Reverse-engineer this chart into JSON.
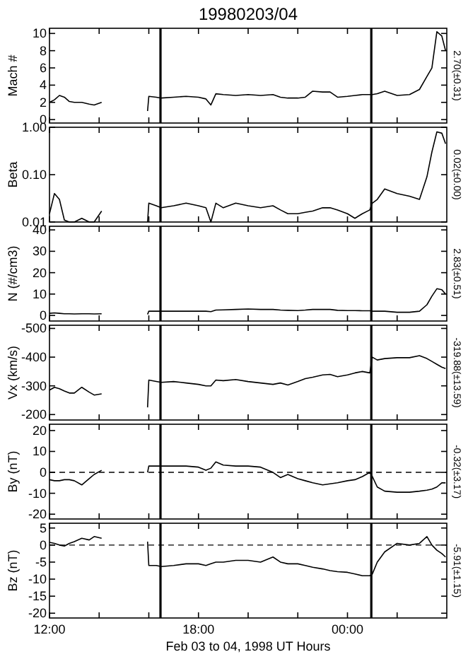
{
  "chart_data": [
    {
      "type": "line",
      "title": "19980203/04",
      "ylabel": "Mach #",
      "annotations": [
        "2.70(±0.31)"
      ],
      "tick_labels": "y",
      "xlim": [
        12,
        28
      ],
      "xticks": [
        {
          "value": 12,
          "label": null
        },
        {
          "value": 14,
          "label": null
        },
        {
          "value": 16,
          "label": null
        },
        {
          "value": 18,
          "label": null
        },
        {
          "value": 20,
          "label": null
        },
        {
          "value": 22,
          "label": null
        },
        {
          "value": 24,
          "label": null
        },
        {
          "value": 26,
          "label": null
        }
      ],
      "ylim": [
        -0.4,
        10.6
      ],
      "yticks": [
        0,
        2,
        4,
        6,
        8,
        10
      ],
      "grid": false,
      "marker": "none",
      "line_style": "solid",
      "x": [
        12.0,
        12.2,
        12.4,
        12.6,
        12.8,
        13.0,
        13.3,
        13.6,
        13.8,
        14.1,
        15.0,
        15.95,
        16.0,
        16.3,
        16.5,
        17.0,
        17.5,
        18.0,
        18.3,
        18.5,
        18.7,
        19.0,
        19.5,
        20.0,
        20.5,
        21.0,
        21.3,
        21.6,
        22.0,
        22.3,
        22.6,
        23.0,
        23.3,
        23.6,
        24.0,
        24.3,
        24.6,
        24.9,
        25.0,
        25.2,
        25.5,
        26.0,
        26.5,
        26.9,
        27.2,
        27.4,
        27.6,
        27.8,
        27.95
      ],
      "ref_lines": [
        {
          "axis": "x",
          "value": 16.47,
          "color": "#000000",
          "line_style": "solid"
        },
        {
          "axis": "x",
          "value": 24.96,
          "color": "#000000",
          "line_style": "solid"
        }
      ],
      "series": [
        {
          "color": "#000000",
          "values": [
            2.0,
            2.3,
            2.8,
            2.6,
            2.1,
            2.0,
            2.0,
            1.8,
            1.7,
            2.0,
            null,
            1.0,
            2.7,
            2.6,
            2.5,
            2.6,
            2.7,
            2.6,
            2.4,
            1.7,
            3.0,
            2.9,
            2.8,
            2.9,
            2.8,
            2.9,
            2.6,
            2.5,
            2.5,
            2.6,
            3.3,
            3.2,
            3.2,
            2.6,
            2.7,
            2.8,
            2.9,
            2.9,
            2.9,
            3.0,
            3.3,
            2.8,
            2.9,
            3.5,
            5.0,
            6.0,
            10.2,
            9.7,
            8.0
          ]
        }
      ]
    },
    {
      "type": "line",
      "ylabel": "Beta",
      "annotations": [
        "0.02(±0.00)"
      ],
      "tick_labels": "y",
      "log": "y",
      "xlim": [
        12,
        28
      ],
      "xticks": [
        {
          "value": 12,
          "label": null
        },
        {
          "value": 14,
          "label": null
        },
        {
          "value": 16,
          "label": null
        },
        {
          "value": 18,
          "label": null
        },
        {
          "value": 20,
          "label": null
        },
        {
          "value": 22,
          "label": null
        },
        {
          "value": 24,
          "label": null
        },
        {
          "value": 26,
          "label": null
        }
      ],
      "ylim": [
        0.01,
        1
      ],
      "yticks": [
        {
          "value": 0.01,
          "label": "0.01"
        },
        {
          "value": 0.1,
          "label": "0.10"
        },
        {
          "value": 1,
          "label": "1.00"
        }
      ],
      "grid": false,
      "marker": "none",
      "line_style": "solid",
      "x": [
        12.0,
        12.2,
        12.4,
        12.6,
        12.8,
        13.0,
        13.3,
        13.6,
        13.8,
        14.1,
        15.0,
        15.95,
        16.0,
        16.3,
        16.5,
        17.0,
        17.5,
        18.0,
        18.3,
        18.5,
        18.7,
        19.0,
        19.5,
        20.0,
        20.5,
        21.0,
        21.3,
        21.6,
        22.0,
        22.3,
        22.6,
        23.0,
        23.3,
        23.6,
        24.0,
        24.3,
        24.6,
        24.9,
        25.0,
        25.2,
        25.5,
        26.0,
        26.5,
        26.9,
        27.2,
        27.4,
        27.6,
        27.8,
        27.95
      ],
      "ref_lines": [
        {
          "axis": "x",
          "value": 16.47,
          "color": "#000000",
          "line_style": "solid"
        },
        {
          "axis": "x",
          "value": 24.96,
          "color": "#000000",
          "line_style": "solid"
        }
      ],
      "series": [
        {
          "color": "#000000",
          "values": [
            0.015,
            0.04,
            0.03,
            0.011,
            0.01,
            0.01,
            0.012,
            0.01,
            0.01,
            0.017,
            null,
            0.01,
            0.025,
            0.022,
            0.02,
            0.022,
            0.025,
            0.022,
            0.02,
            0.01,
            0.025,
            0.02,
            0.025,
            0.022,
            0.02,
            0.022,
            0.018,
            0.015,
            0.015,
            0.016,
            0.017,
            0.02,
            0.02,
            0.018,
            0.015,
            0.012,
            0.015,
            0.018,
            0.025,
            0.03,
            0.05,
            0.04,
            0.035,
            0.03,
            0.09,
            0.3,
            0.8,
            0.75,
            0.45
          ]
        }
      ]
    },
    {
      "type": "line",
      "ylabel": "N (#/cm3)",
      "annotations": [
        "2.83(±0.51)"
      ],
      "tick_labels": "y",
      "xlim": [
        12,
        28
      ],
      "xticks": [
        {
          "value": 12,
          "label": null
        },
        {
          "value": 14,
          "label": null
        },
        {
          "value": 16,
          "label": null
        },
        {
          "value": 18,
          "label": null
        },
        {
          "value": 20,
          "label": null
        },
        {
          "value": 22,
          "label": null
        },
        {
          "value": 24,
          "label": null
        },
        {
          "value": 26,
          "label": null
        }
      ],
      "ylim": [
        -2.6,
        41.7
      ],
      "yticks": [
        0,
        10,
        20,
        30,
        40
      ],
      "grid": false,
      "marker": "none",
      "line_style": "solid",
      "x": [
        12.0,
        12.2,
        12.4,
        12.6,
        12.8,
        13.0,
        13.3,
        13.6,
        13.8,
        14.1,
        15.0,
        15.95,
        16.0,
        16.3,
        16.5,
        17.0,
        17.5,
        18.0,
        18.3,
        18.5,
        18.7,
        19.0,
        19.5,
        20.0,
        20.5,
        21.0,
        21.3,
        21.6,
        22.0,
        22.3,
        22.6,
        23.0,
        23.3,
        23.6,
        24.0,
        24.3,
        24.6,
        24.9,
        25.0,
        25.2,
        25.5,
        26.0,
        26.5,
        26.9,
        27.2,
        27.4,
        27.6,
        27.8,
        27.95
      ],
      "ref_lines": [
        {
          "axis": "x",
          "value": 16.47,
          "color": "#000000",
          "line_style": "solid"
        },
        {
          "axis": "x",
          "value": 24.96,
          "color": "#000000",
          "line_style": "solid"
        }
      ],
      "series": [
        {
          "color": "#000000",
          "values": [
            1,
            1.2,
            1,
            0.8,
            0.8,
            0.7,
            0.8,
            0.8,
            0.7,
            0.8,
            null,
            0.5,
            2,
            2,
            2,
            2,
            2,
            2,
            2,
            1.8,
            2.5,
            2.6,
            2.8,
            3,
            2.8,
            2.8,
            2.5,
            2.4,
            2.3,
            2.5,
            2.8,
            2.8,
            2.8,
            2.4,
            2.3,
            2.3,
            2.2,
            2.2,
            2.0,
            2.0,
            2.0,
            1.5,
            1.5,
            2.0,
            5,
            9,
            12.5,
            12,
            10
          ]
        }
      ]
    },
    {
      "type": "line",
      "ylabel": "Vx (km/s)",
      "annotations": [
        "-319.88(±13.59)"
      ],
      "tick_labels": "y",
      "xlim": [
        12,
        28
      ],
      "xticks": [
        {
          "value": 12,
          "label": null
        },
        {
          "value": 14,
          "label": null
        },
        {
          "value": 16,
          "label": null
        },
        {
          "value": 18,
          "label": null
        },
        {
          "value": 20,
          "label": null
        },
        {
          "value": 22,
          "label": null
        },
        {
          "value": 24,
          "label": null
        },
        {
          "value": 26,
          "label": null
        }
      ],
      "ylim": [
        -181,
        -511
      ],
      "yticks": [
        -500,
        -400,
        -300,
        -200
      ],
      "grid": false,
      "marker": "none",
      "line_style": "solid",
      "x": [
        12.0,
        12.2,
        12.4,
        12.6,
        12.8,
        13.0,
        13.3,
        13.6,
        13.8,
        14.1,
        15.0,
        15.95,
        16.0,
        16.3,
        16.5,
        17.0,
        17.5,
        18.0,
        18.3,
        18.5,
        18.7,
        19.0,
        19.5,
        20.0,
        20.5,
        21.0,
        21.3,
        21.6,
        22.0,
        22.3,
        22.6,
        23.0,
        23.3,
        23.6,
        24.0,
        24.3,
        24.6,
        24.9,
        25.0,
        25.2,
        25.5,
        26.0,
        26.5,
        26.9,
        27.2,
        27.4,
        27.6,
        27.8,
        27.95
      ],
      "ref_lines": [
        {
          "axis": "x",
          "value": 16.47,
          "color": "#000000",
          "line_style": "solid"
        },
        {
          "axis": "x",
          "value": 24.96,
          "color": "#000000",
          "line_style": "solid"
        }
      ],
      "series": [
        {
          "color": "#000000",
          "values": [
            -285,
            -295,
            -290,
            -282,
            -275,
            -275,
            -295,
            -278,
            -268,
            -272,
            null,
            -225,
            -320,
            -315,
            -312,
            -315,
            -310,
            -305,
            -300,
            -300,
            -320,
            -318,
            -322,
            -315,
            -310,
            -305,
            -310,
            -303,
            -315,
            -325,
            -330,
            -338,
            -340,
            -332,
            -338,
            -345,
            -350,
            -345,
            -400,
            -390,
            -395,
            -398,
            -398,
            -405,
            -395,
            -385,
            -375,
            -365,
            -360
          ]
        }
      ]
    },
    {
      "type": "line",
      "ylabel": "By (nT)",
      "annotations": [
        "-0.32(±3.17)"
      ],
      "tick_labels": "y",
      "xlim": [
        12,
        28
      ],
      "xticks": [
        {
          "value": 12,
          "label": null
        },
        {
          "value": 14,
          "label": null
        },
        {
          "value": 16,
          "label": null
        },
        {
          "value": 18,
          "label": null
        },
        {
          "value": 20,
          "label": null
        },
        {
          "value": 22,
          "label": null
        },
        {
          "value": 24,
          "label": null
        },
        {
          "value": 26,
          "label": null
        }
      ],
      "ylim": [
        -22.3,
        23
      ],
      "yticks": [
        -20,
        -10,
        0,
        10,
        20
      ],
      "grid": false,
      "marker": "none",
      "line_style": "solid",
      "x": [
        12.0,
        12.2,
        12.4,
        12.6,
        12.8,
        13.0,
        13.3,
        13.6,
        13.8,
        14.1,
        15.0,
        15.95,
        16.0,
        16.3,
        16.5,
        17.0,
        17.5,
        18.0,
        18.3,
        18.5,
        18.7,
        19.0,
        19.5,
        20.0,
        20.5,
        21.0,
        21.3,
        21.6,
        22.0,
        22.3,
        22.6,
        23.0,
        23.3,
        23.6,
        24.0,
        24.3,
        24.6,
        24.9,
        25.0,
        25.2,
        25.5,
        26.0,
        26.5,
        26.9,
        27.2,
        27.4,
        27.6,
        27.8,
        27.95
      ],
      "ref_lines": [
        {
          "axis": "x",
          "value": 16.47,
          "color": "#000000",
          "line_style": "solid"
        },
        {
          "axis": "x",
          "value": 24.96,
          "color": "#000000",
          "line_style": "solid"
        },
        {
          "axis": "y",
          "value": 0,
          "color": "#000000",
          "line_style": "dashed"
        }
      ],
      "series": [
        {
          "color": "#000000",
          "values": [
            -3.5,
            -4,
            -4,
            -3.5,
            -3.5,
            -4,
            -6,
            -3,
            -1,
            1,
            null,
            0,
            3,
            3,
            3,
            3,
            3,
            2.5,
            1,
            2,
            5,
            3.5,
            3,
            3,
            2.5,
            0,
            -2.5,
            -1,
            -3,
            -4,
            -5,
            -6,
            -5.5,
            -5,
            -4,
            -3.5,
            -2,
            0,
            -2,
            -7,
            -9,
            -9.5,
            -9.5,
            -9,
            -8.5,
            -8,
            -7,
            -5,
            -5
          ]
        }
      ]
    },
    {
      "type": "line",
      "ylabel": "Bz (nT)",
      "xlabel": "Feb 03 to 04, 1998 UT Hours",
      "annotations": [
        "-5.91(±1.15)"
      ],
      "xlim": [
        12,
        28
      ],
      "xticks": [
        {
          "value": 12,
          "label": "12:00"
        },
        {
          "value": 14,
          "label": null
        },
        {
          "value": 16,
          "label": null
        },
        {
          "value": 18,
          "label": "18:00"
        },
        {
          "value": 20,
          "label": null
        },
        {
          "value": 22,
          "label": null
        },
        {
          "value": 24,
          "label": "00:00"
        },
        {
          "value": 26,
          "label": null
        }
      ],
      "ylim": [
        -21.4,
        6.4
      ],
      "yticks": [
        -20,
        -15,
        -10,
        -5,
        0,
        5
      ],
      "grid": false,
      "marker": "none",
      "line_style": "solid",
      "x": [
        12.0,
        12.2,
        12.4,
        12.6,
        12.8,
        13.0,
        13.3,
        13.6,
        13.8,
        14.1,
        15.0,
        15.95,
        16.0,
        16.3,
        16.5,
        17.0,
        17.5,
        18.0,
        18.3,
        18.5,
        18.7,
        19.0,
        19.5,
        20.0,
        20.5,
        21.0,
        21.3,
        21.6,
        22.0,
        22.3,
        22.6,
        23.0,
        23.3,
        23.6,
        24.0,
        24.3,
        24.6,
        24.9,
        25.0,
        25.2,
        25.5,
        26.0,
        26.5,
        26.9,
        27.2,
        27.4,
        27.6,
        27.8,
        27.95
      ],
      "ref_lines": [
        {
          "axis": "x",
          "value": 16.47,
          "color": "#000000",
          "line_style": "solid"
        },
        {
          "axis": "x",
          "value": 24.96,
          "color": "#000000",
          "line_style": "solid"
        },
        {
          "axis": "y",
          "value": 0,
          "color": "#000000",
          "line_style": "dashed"
        }
      ],
      "series": [
        {
          "color": "#000000",
          "values": [
            0.8,
            0.5,
            0,
            -0.3,
            0.5,
            1,
            2,
            1.5,
            2.5,
            2,
            null,
            1,
            -6,
            -6,
            -6.3,
            -6,
            -5.5,
            -5.5,
            -6,
            -5.5,
            -5,
            -5,
            -4.5,
            -4.5,
            -5,
            -3.5,
            -5,
            -5.5,
            -5.5,
            -6,
            -6.5,
            -7,
            -7.5,
            -7.8,
            -8,
            -8.5,
            -9,
            -9,
            -8.5,
            -5,
            -2,
            0.5,
            0,
            0.5,
            2.5,
            0,
            -1.5,
            -2.5,
            -3.5
          ]
        }
      ]
    }
  ]
}
